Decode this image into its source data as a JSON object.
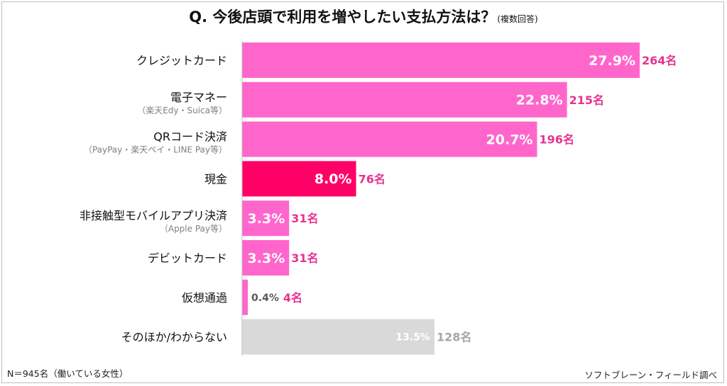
{
  "title": {
    "main": "Q.  今後店頭で利用を増やしたい支払方法は？",
    "note": "(複数回答)"
  },
  "footer": {
    "sample": "N＝945名（働いている女性）",
    "source": "ソフトブレーン・フィールド調べ"
  },
  "colors": {
    "bar_default": "#ff66cc",
    "bar_highlight": "#ff0066",
    "bar_other": "#d9d9d9",
    "count_text": "#e6338f",
    "count_other": "#a6a6a6",
    "axis": "#bfbfbf"
  },
  "chart_data": {
    "type": "bar",
    "orientation": "horizontal",
    "categories": [
      {
        "label": "クレジットカード",
        "sub": ""
      },
      {
        "label": "電子マネー",
        "sub": "（楽天Edy・Suica等）"
      },
      {
        "label": "QRコード決済",
        "sub": "（PayPay・楽天ペイ・LINE Pay等）"
      },
      {
        "label": "現金",
        "sub": ""
      },
      {
        "label": "非接触型モバイルアプリ決済",
        "sub": "（Apple Pay等）"
      },
      {
        "label": "デビットカード",
        "sub": ""
      },
      {
        "label": "仮想通過",
        "sub": ""
      },
      {
        "label": "そのほか/わからない",
        "sub": ""
      }
    ],
    "values": [
      27.9,
      22.8,
      20.7,
      8.0,
      3.3,
      3.3,
      0.4,
      13.5
    ],
    "value_labels": [
      "27.9%",
      "22.8%",
      "20.7%",
      "8.0%",
      "3.3%",
      "3.3%",
      "0.4%",
      "13.5%"
    ],
    "counts": [
      "264名",
      "215名",
      "196名",
      "76名",
      "31名",
      "31名",
      "4名",
      "128名"
    ],
    "highlight_index": 3,
    "other_index": 7,
    "unit": "%",
    "xlim": [
      0,
      27.9
    ]
  }
}
